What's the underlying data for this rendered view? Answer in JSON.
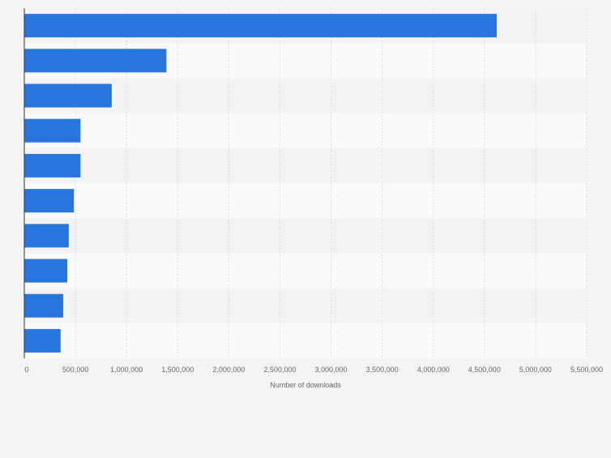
{
  "chart_data": {
    "type": "bar",
    "orientation": "horizontal",
    "categories": [
      "",
      "",
      "",
      "",
      "",
      "",
      "",
      "",
      "",
      ""
    ],
    "values": [
      4620000,
      1390000,
      855000,
      550000,
      550000,
      485000,
      435000,
      420000,
      380000,
      355000
    ],
    "title": "",
    "xlabel": "Number of downloads",
    "ylabel": "",
    "xlim": [
      0,
      5500000
    ],
    "xticks": [
      0,
      500000,
      1000000,
      1500000,
      2000000,
      2500000,
      3000000,
      3500000,
      4000000,
      4500000,
      5000000,
      5500000
    ],
    "xtick_labels": [
      "0",
      "500,000",
      "1,000,000",
      "1,500,000",
      "2,000,000",
      "2,500,000",
      "3,000,000",
      "3,500,000",
      "4,000,000",
      "4,500,000",
      "5,000,000",
      "5,500,000"
    ],
    "grid": true,
    "legend": "none",
    "colors": {
      "bar": "#2876dd",
      "band_light": "#fafafa",
      "band_dark": "#f3f3f3",
      "grid": "#dcdcdc",
      "axis": "#333333",
      "text": "#666666"
    }
  }
}
